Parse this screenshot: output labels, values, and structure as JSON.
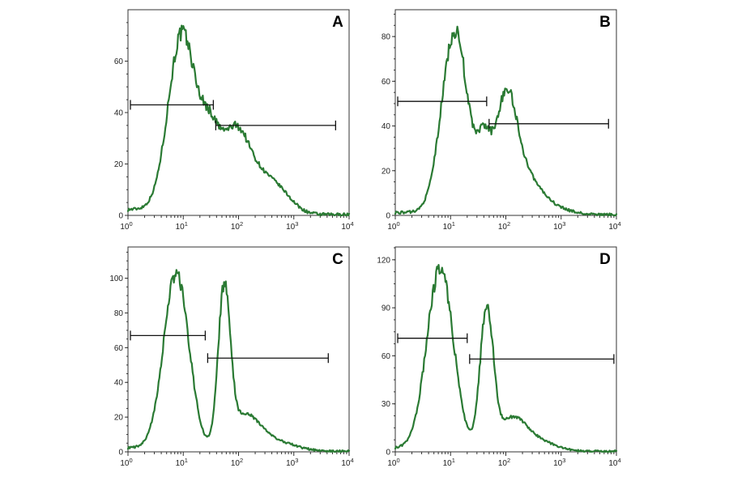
{
  "colors": {
    "histogram": "#2a7a33",
    "gate": "#111111",
    "axis": "#333333"
  },
  "chart_data": [
    {
      "type": "line",
      "panel_label": "A",
      "title": "",
      "xlabel": "",
      "ylabel": "",
      "x_scale": "log",
      "xlim": [
        1,
        10000
      ],
      "ylim": [
        0,
        80
      ],
      "yticks": [
        0,
        20,
        40,
        60
      ],
      "xticks": [
        {
          "value": 1,
          "base": "10",
          "exp": "0"
        },
        {
          "value": 10,
          "base": "10",
          "exp": "1"
        },
        {
          "value": 100,
          "base": "10",
          "exp": "2"
        },
        {
          "value": 1000,
          "base": "10",
          "exp": "3"
        },
        {
          "value": 10000,
          "base": "10",
          "exp": "4"
        }
      ],
      "grid": false,
      "peaks": [
        {
          "center": 9.5,
          "height": 70,
          "width": 0.25
        },
        {
          "center": 30,
          "height": 25,
          "width": 0.18
        },
        {
          "center": 85,
          "height": 30,
          "width": 0.25
        },
        {
          "center": 250,
          "height": 12,
          "width": 0.3
        },
        {
          "center": 600,
          "height": 5,
          "width": 0.25
        }
      ],
      "baseline": 2,
      "gates": [
        {
          "x1": 1,
          "x2": 35,
          "y": 43
        },
        {
          "x1": 35,
          "x2": 5700,
          "y": 35
        }
      ]
    },
    {
      "type": "line",
      "panel_label": "B",
      "title": "",
      "xlabel": "",
      "ylabel": "",
      "x_scale": "log",
      "xlim": [
        1,
        10000
      ],
      "ylim": [
        0,
        92
      ],
      "yticks": [
        0,
        20,
        40,
        60,
        80
      ],
      "xticks": [
        {
          "value": 1,
          "base": "10",
          "exp": "0"
        },
        {
          "value": 10,
          "base": "10",
          "exp": "1"
        },
        {
          "value": 100,
          "base": "10",
          "exp": "2"
        },
        {
          "value": 1000,
          "base": "10",
          "exp": "3"
        },
        {
          "value": 10000,
          "base": "10",
          "exp": "4"
        }
      ],
      "grid": false,
      "peaks": [
        {
          "center": 12,
          "height": 82,
          "width": 0.24
        },
        {
          "center": 40,
          "height": 25,
          "width": 0.12
        },
        {
          "center": 100,
          "height": 52,
          "width": 0.2
        },
        {
          "center": 250,
          "height": 14,
          "width": 0.25
        },
        {
          "center": 700,
          "height": 3,
          "width": 0.3
        }
      ],
      "baseline": 1,
      "gates": [
        {
          "x1": 1,
          "x2": 45,
          "y": 51
        },
        {
          "x1": 45,
          "x2": 7200,
          "y": 41
        }
      ]
    },
    {
      "type": "line",
      "panel_label": "C",
      "title": "",
      "xlabel": "",
      "ylabel": "",
      "x_scale": "log",
      "xlim": [
        1,
        10000
      ],
      "ylim": [
        0,
        118
      ],
      "yticks": [
        0,
        20,
        40,
        60,
        80,
        100
      ],
      "xticks": [
        {
          "value": 1,
          "base": "10",
          "exp": "0"
        },
        {
          "value": 10,
          "base": "10",
          "exp": "1"
        },
        {
          "value": 100,
          "base": "10",
          "exp": "2"
        },
        {
          "value": 1000,
          "base": "10",
          "exp": "3"
        },
        {
          "value": 10000,
          "base": "10",
          "exp": "4"
        }
      ],
      "grid": false,
      "peaks": [
        {
          "center": 7.5,
          "height": 102,
          "width": 0.23
        },
        {
          "center": 55,
          "height": 88,
          "width": 0.11
        },
        {
          "center": 130,
          "height": 20,
          "width": 0.28
        },
        {
          "center": 500,
          "height": 5,
          "width": 0.35
        }
      ],
      "baseline": 2,
      "gates": [
        {
          "x1": 1,
          "x2": 25,
          "y": 67
        },
        {
          "x1": 25,
          "x2": 4200,
          "y": 54
        }
      ]
    },
    {
      "type": "line",
      "panel_label": "D",
      "title": "",
      "xlabel": "",
      "ylabel": "",
      "x_scale": "log",
      "xlim": [
        1,
        10000
      ],
      "ylim": [
        0,
        128
      ],
      "yticks": [
        0,
        30,
        60,
        90,
        120
      ],
      "xticks": [
        {
          "value": 1,
          "base": "10",
          "exp": "0"
        },
        {
          "value": 10,
          "base": "10",
          "exp": "1"
        },
        {
          "value": 100,
          "base": "10",
          "exp": "2"
        },
        {
          "value": 1000,
          "base": "10",
          "exp": "3"
        },
        {
          "value": 10000,
          "base": "10",
          "exp": "4"
        }
      ],
      "grid": false,
      "peaks": [
        {
          "center": 6.5,
          "height": 114,
          "width": 0.24
        },
        {
          "center": 45,
          "height": 87,
          "width": 0.12
        },
        {
          "center": 130,
          "height": 20,
          "width": 0.25
        },
        {
          "center": 400,
          "height": 6,
          "width": 0.3
        }
      ],
      "baseline": 2,
      "gates": [
        {
          "x1": 1,
          "x2": 20,
          "y": 71
        },
        {
          "x1": 20,
          "x2": 9000,
          "y": 58
        }
      ]
    }
  ]
}
